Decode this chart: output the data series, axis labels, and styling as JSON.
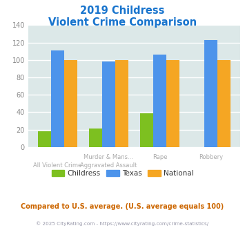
{
  "title_line1": "2019 Childress",
  "title_line2": "Violent Crime Comparison",
  "title_color": "#1874cd",
  "childress_values": [
    18,
    21,
    39,
    0
  ],
  "texas_values": [
    111,
    98,
    106,
    123
  ],
  "national_values": [
    100,
    100,
    100,
    100
  ],
  "childress_color": "#7dc020",
  "texas_color": "#4d94eb",
  "national_color": "#f5a623",
  "ylim": [
    0,
    140
  ],
  "yticks": [
    0,
    20,
    40,
    60,
    80,
    100,
    120,
    140
  ],
  "bg_color": "#dce8e8",
  "grid_color": "#ffffff",
  "legend_labels": [
    "Childress",
    "Texas",
    "National"
  ],
  "row1_labels": [
    "",
    "Murder & Mans...",
    "Rape",
    "Robbery"
  ],
  "row2_labels": [
    "All Violent Crime",
    "Aggravated Assault",
    "",
    ""
  ],
  "footnote": "Compared to U.S. average. (U.S. average equals 100)",
  "footnote_color": "#cc6600",
  "copyright_text": "© 2025 CityRating.com - https://www.cityrating.com/crime-statistics/",
  "copyright_color": "#9999aa",
  "xlabel_color": "#aaaaaa",
  "ytick_color": "#888888"
}
